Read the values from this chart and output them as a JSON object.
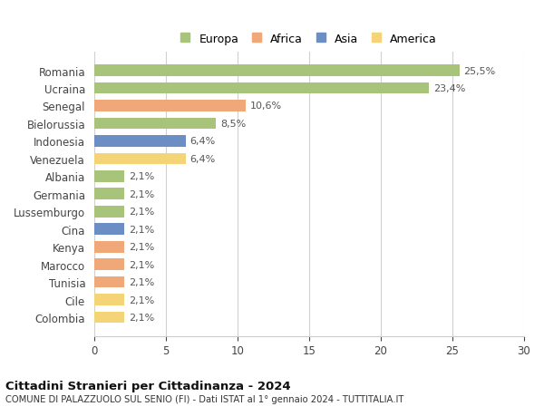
{
  "categories": [
    "Romania",
    "Ucraina",
    "Senegal",
    "Bielorussia",
    "Indonesia",
    "Venezuela",
    "Albania",
    "Germania",
    "Lussemburgo",
    "Cina",
    "Kenya",
    "Marocco",
    "Tunisia",
    "Cile",
    "Colombia"
  ],
  "values": [
    25.5,
    23.4,
    10.6,
    8.5,
    6.4,
    6.4,
    2.1,
    2.1,
    2.1,
    2.1,
    2.1,
    2.1,
    2.1,
    2.1,
    2.1
  ],
  "labels": [
    "25,5%",
    "23,4%",
    "10,6%",
    "8,5%",
    "6,4%",
    "6,4%",
    "2,1%",
    "2,1%",
    "2,1%",
    "2,1%",
    "2,1%",
    "2,1%",
    "2,1%",
    "2,1%",
    "2,1%"
  ],
  "colors": [
    "#a8c47a",
    "#a8c47a",
    "#f0a878",
    "#a8c47a",
    "#6b8fc4",
    "#f5d478",
    "#a8c47a",
    "#a8c47a",
    "#a8c47a",
    "#6b8fc4",
    "#f0a878",
    "#f0a878",
    "#f0a878",
    "#f5d478",
    "#f5d478"
  ],
  "legend_labels": [
    "Europa",
    "Africa",
    "Asia",
    "America"
  ],
  "legend_colors": [
    "#a8c47a",
    "#f0a878",
    "#6b8fc4",
    "#f5d478"
  ],
  "xlim": [
    0,
    30
  ],
  "xticks": [
    0,
    5,
    10,
    15,
    20,
    25,
    30
  ],
  "title": "Cittadini Stranieri per Cittadinanza - 2024",
  "subtitle": "COMUNE DI PALAZZUOLO SUL SENIO (FI) - Dati ISTAT al 1° gennaio 2024 - TUTTITALIA.IT",
  "background_color": "#ffffff",
  "grid_color": "#d0d0d0",
  "bar_height": 0.65,
  "figsize": [
    6.0,
    4.6
  ],
  "dpi": 100
}
